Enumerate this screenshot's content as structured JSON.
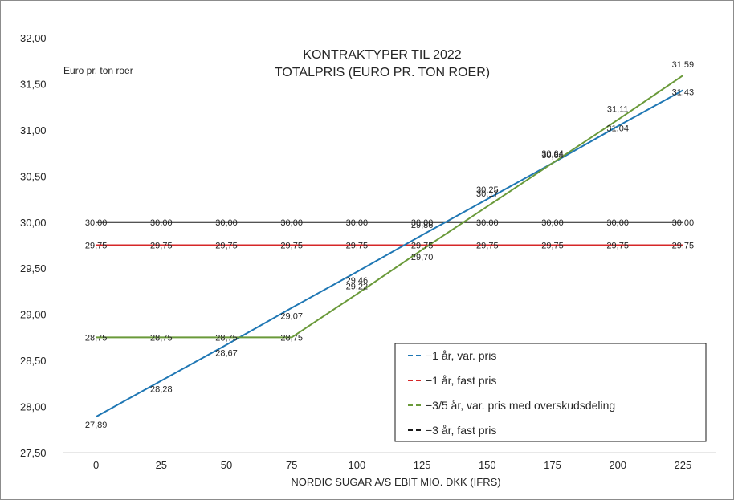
{
  "chart_data": {
    "type": "line",
    "title": [
      "KONTRAKTYPER TIL 2022",
      "TOTALPRIS (EURO PR. TON ROER)"
    ],
    "unit_label": "Euro pr. ton roer",
    "xlabel": "NORDIC SUGAR A/S EBIT MIO. DKK (IFRS)",
    "ylabel": "",
    "categories": [
      "0",
      "25",
      "50",
      "75",
      "100",
      "125",
      "150",
      "175",
      "200",
      "225"
    ],
    "ylim": [
      27.5,
      32.0
    ],
    "yticks": [
      "27,50",
      "28,00",
      "28,50",
      "29,00",
      "29,50",
      "30,00",
      "30,50",
      "31,00",
      "31,50",
      "32,00"
    ],
    "grid": false,
    "legend_position": "bottom-right",
    "series": [
      {
        "name": "1 år, var. pris",
        "color": "#1f77b4",
        "values": [
          27.89,
          28.28,
          28.67,
          29.07,
          29.46,
          29.86,
          30.25,
          30.64,
          31.04,
          31.43
        ],
        "labels": [
          "27,89",
          "28,28",
          "28,67",
          "29,07",
          "29,46",
          "29,86",
          "30,25",
          "30,64",
          "31,04",
          "31,43"
        ]
      },
      {
        "name": "1 år, fast pris",
        "color": "#d62728",
        "values": [
          29.75,
          29.75,
          29.75,
          29.75,
          29.75,
          29.75,
          29.75,
          29.75,
          29.75,
          29.75
        ],
        "labels": [
          "29,75",
          "29,75",
          "29,75",
          "29,75",
          "29,75",
          "29,75",
          "29,75",
          "29,75",
          "29,75",
          "29,75"
        ]
      },
      {
        "name": "3/5 år, var. pris med overskudsdeling",
        "color": "#6a9a3a",
        "values": [
          28.75,
          28.75,
          28.75,
          28.75,
          29.22,
          29.7,
          30.17,
          30.64,
          31.11,
          31.59
        ],
        "labels": [
          "28,75",
          "28,75",
          "28,75",
          "28,75",
          "29,22",
          "29,70",
          "30,17",
          "30,64",
          "31,11",
          "31,59"
        ]
      },
      {
        "name": "3 år, fast pris",
        "color": "#1a1a1a",
        "values": [
          30.0,
          30.0,
          30.0,
          30.0,
          30.0,
          30.0,
          30.0,
          30.0,
          30.0,
          30.0
        ],
        "labels": [
          "30,00",
          "30,00",
          "30,00",
          "30,00",
          "30,00",
          "30,00",
          "30,00",
          "30,00",
          "30,00",
          "30,00"
        ]
      }
    ]
  }
}
